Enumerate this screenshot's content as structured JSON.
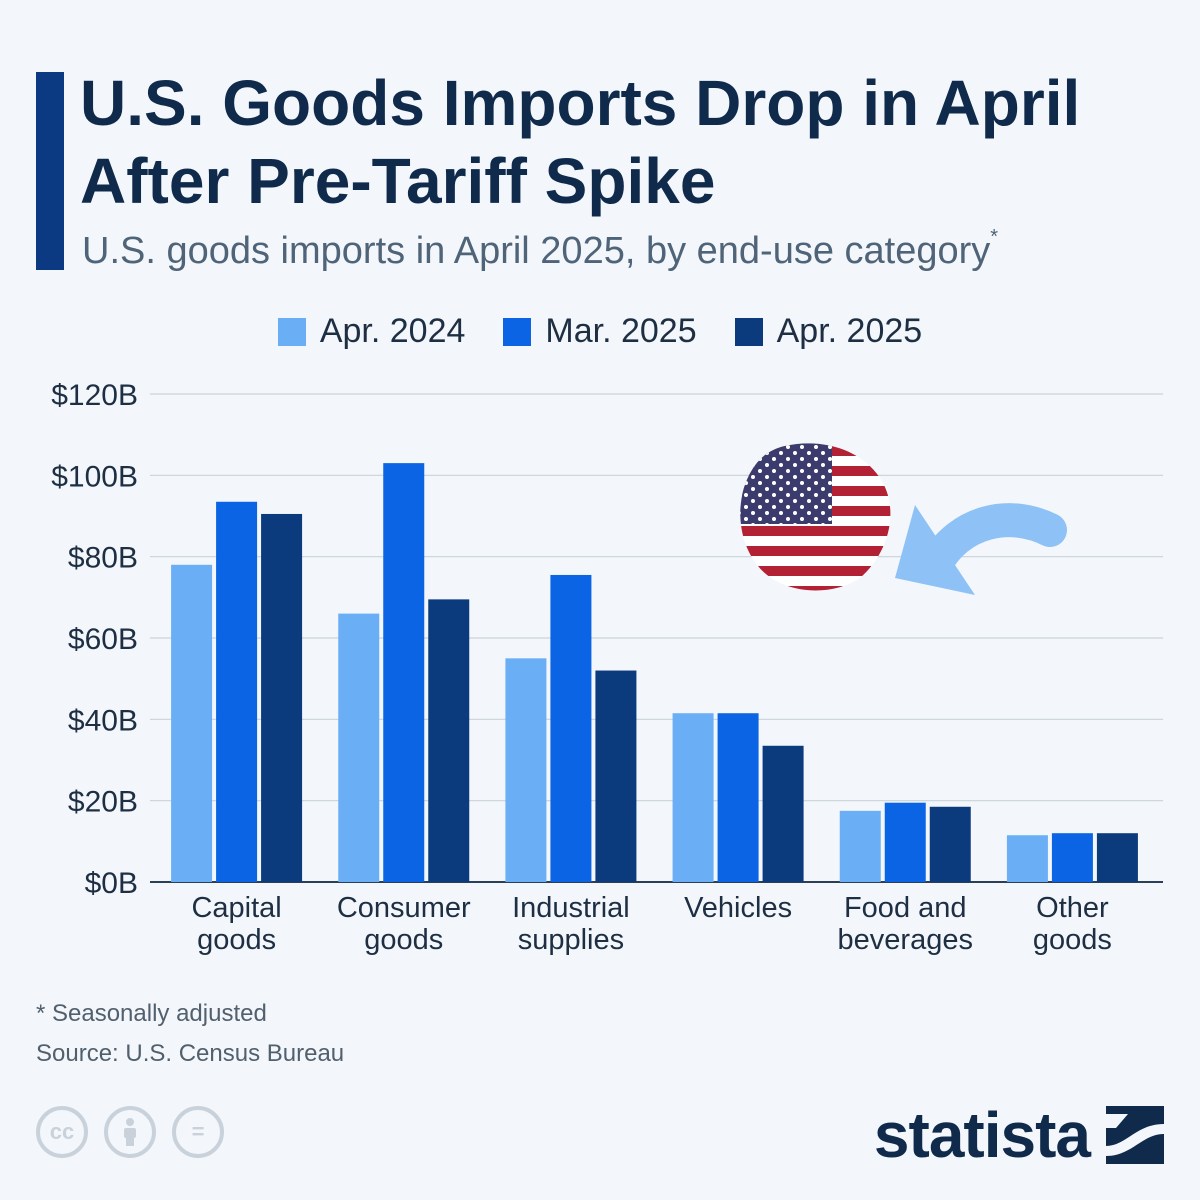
{
  "header": {
    "title": "U.S. Goods Imports Drop in April After Pre-Tariff Spike",
    "subtitle": "U.S. goods imports in April 2025, by end-use category",
    "subtitle_mark": "*"
  },
  "footer": {
    "footnote": "* Seasonally adjusted",
    "source": "Source: U.S. Census Bureau",
    "brand": "statista",
    "cc_icons": [
      "cc-icon",
      "attribution-icon",
      "no-derivatives-icon"
    ],
    "cc_text": "cc",
    "nd_text": "="
  },
  "decoration": {
    "icon": "us-flag-icon",
    "arrow": "curved-arrow-icon"
  },
  "colors": {
    "apr2024": "#6aaef5",
    "mar2025": "#0a64e4",
    "apr2025": "#0b3a7d",
    "grid": "#c9d1da"
  },
  "chart_data": {
    "type": "bar",
    "title": "U.S. Goods Imports Drop in April After Pre-Tariff Spike",
    "subtitle": "U.S. goods imports in April 2025, by end-use category",
    "categories": [
      [
        "Capital",
        "goods"
      ],
      [
        "Consumer",
        "goods"
      ],
      [
        "Industrial",
        "supplies"
      ],
      [
        "Vehicles"
      ],
      [
        "Food and",
        "beverages"
      ],
      [
        "Other",
        "goods"
      ]
    ],
    "series": [
      {
        "name": "Apr. 2024",
        "color": "#6aaef5",
        "values": [
          78,
          66,
          55,
          41.5,
          17.5,
          11.5
        ]
      },
      {
        "name": "Mar. 2025",
        "color": "#0a64e4",
        "values": [
          93.5,
          103,
          75.5,
          41.5,
          19.5,
          12
        ]
      },
      {
        "name": "Apr. 2025",
        "color": "#0b3a7d",
        "values": [
          90.5,
          69.5,
          52,
          33.5,
          18.5,
          12
        ]
      }
    ],
    "yticks": [
      "$0B",
      "$20B",
      "$40B",
      "$60B",
      "$80B",
      "$100B",
      "$120B"
    ],
    "ylim": [
      0,
      120
    ],
    "unit": "billion USD",
    "grid": true,
    "legend_position": "top-center"
  }
}
